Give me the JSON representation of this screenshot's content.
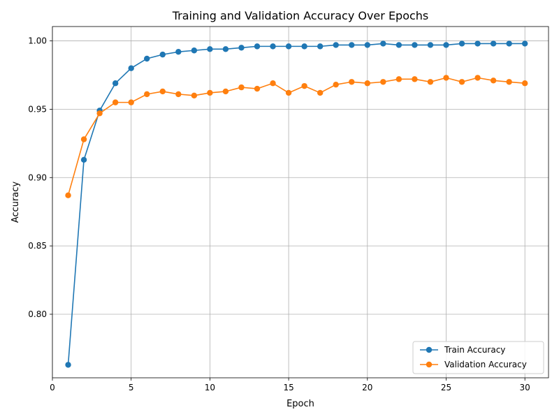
{
  "chart_data": {
    "type": "line",
    "title": "Training and Validation Accuracy Over Epochs",
    "xlabel": "Epoch",
    "ylabel": "Accuracy",
    "xlim": [
      0,
      31.5
    ],
    "ylim": [
      0.7535,
      1.0105
    ],
    "xticks": [
      0,
      5,
      10,
      15,
      20,
      25,
      30
    ],
    "yticks": [
      0.8,
      0.85,
      0.9,
      0.95,
      1.0
    ],
    "ytick_labels": [
      "0.80",
      "0.85",
      "0.90",
      "0.95",
      "1.00"
    ],
    "grid": true,
    "legend_position": "lower-right",
    "x": [
      1,
      2,
      3,
      4,
      5,
      6,
      7,
      8,
      9,
      10,
      11,
      12,
      13,
      14,
      15,
      16,
      17,
      18,
      19,
      20,
      21,
      22,
      23,
      24,
      25,
      26,
      27,
      28,
      29,
      30
    ],
    "series": [
      {
        "name": "Train Accuracy",
        "color": "#1f77b4",
        "values": [
          0.763,
          0.913,
          0.949,
          0.969,
          0.98,
          0.987,
          0.99,
          0.992,
          0.993,
          0.994,
          0.994,
          0.995,
          0.996,
          0.996,
          0.996,
          0.996,
          0.996,
          0.997,
          0.997,
          0.997,
          0.998,
          0.997,
          0.997,
          0.997,
          0.997,
          0.998,
          0.998,
          0.998,
          0.998,
          0.998
        ]
      },
      {
        "name": "Validation Accuracy",
        "color": "#ff7f0e",
        "values": [
          0.887,
          0.928,
          0.947,
          0.955,
          0.955,
          0.961,
          0.963,
          0.961,
          0.96,
          0.962,
          0.963,
          0.966,
          0.965,
          0.969,
          0.962,
          0.967,
          0.962,
          0.968,
          0.97,
          0.969,
          0.97,
          0.972,
          0.972,
          0.97,
          0.973,
          0.97,
          0.973,
          0.971,
          0.97,
          0.969
        ]
      }
    ]
  }
}
